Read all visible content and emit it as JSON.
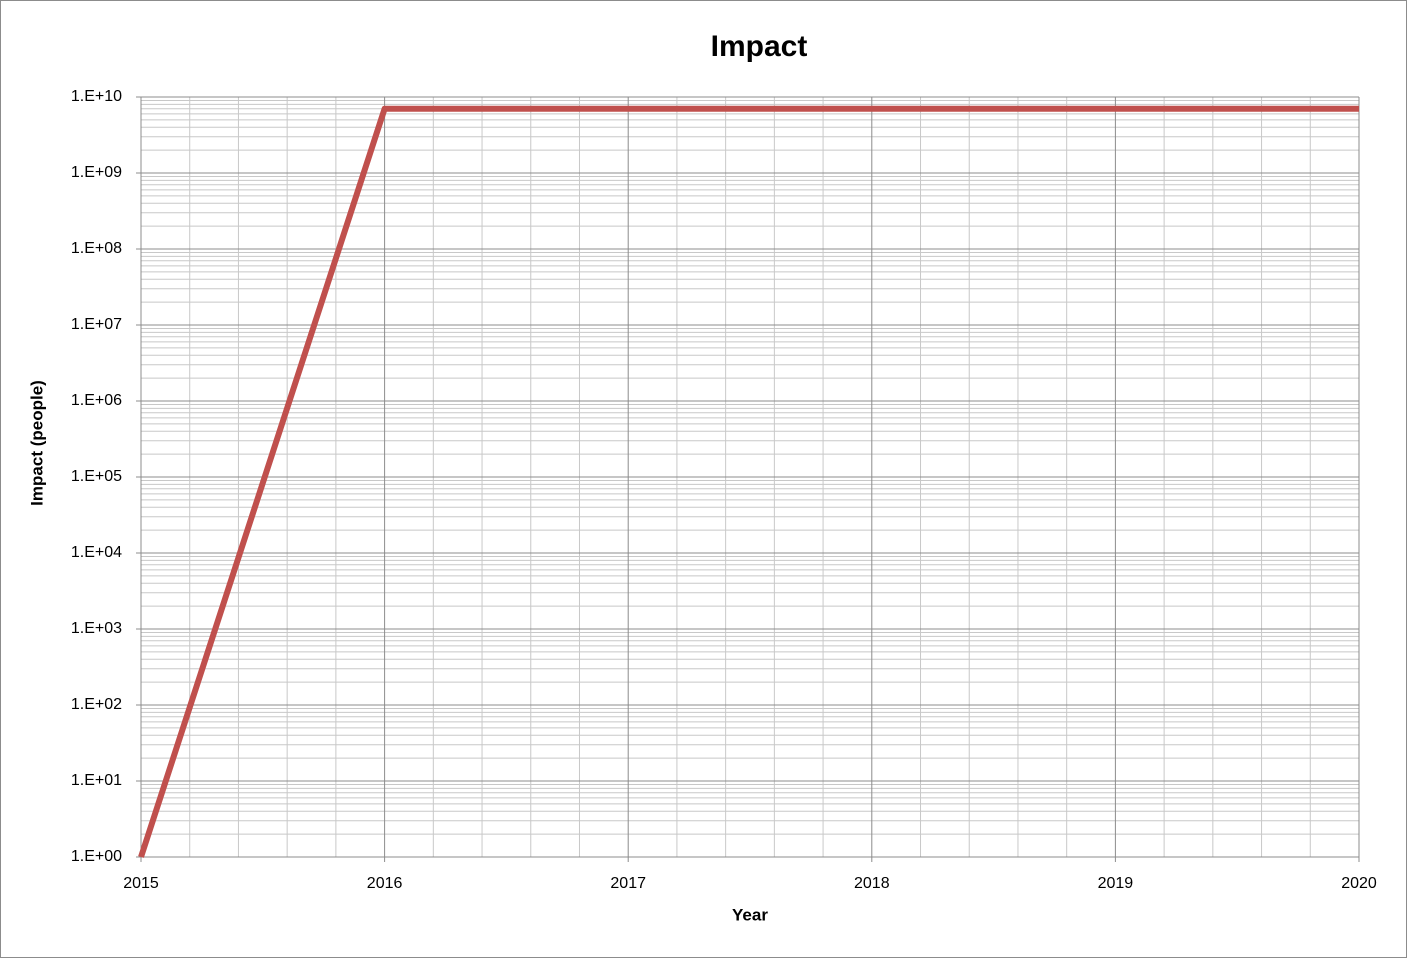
{
  "chart_data": {
    "type": "line",
    "title": "Impact",
    "x_label": "Year",
    "y_label": "Impact (people)",
    "x": [
      2015,
      2016,
      2017,
      2018,
      2019,
      2020
    ],
    "series": [
      {
        "name": "Impact",
        "color": "#c0504d",
        "values": [
          1,
          7000000000,
          7000000000,
          7000000000,
          7000000000,
          7000000000
        ]
      }
    ],
    "xlim": [
      2015,
      2020
    ],
    "xticks": [
      2015,
      2016,
      2017,
      2018,
      2019,
      2020
    ],
    "ylim": [
      1,
      10000000000
    ],
    "log_y": true,
    "yticks": [
      {
        "value": 1,
        "label": "1.E+00"
      },
      {
        "value": 10,
        "label": "1.E+01"
      },
      {
        "value": 100,
        "label": "1.E+02"
      },
      {
        "value": 1000,
        "label": "1.E+03"
      },
      {
        "value": 10000,
        "label": "1.E+04"
      },
      {
        "value": 100000,
        "label": "1.E+05"
      },
      {
        "value": 1000000,
        "label": "1.E+06"
      },
      {
        "value": 10000000,
        "label": "1.E+07"
      },
      {
        "value": 100000000,
        "label": "1.E+08"
      },
      {
        "value": 1000000000,
        "label": "1.E+09"
      },
      {
        "value": 10000000000,
        "label": "1.E+10"
      }
    ],
    "grid": true,
    "minor_grid": true,
    "legend": false
  }
}
